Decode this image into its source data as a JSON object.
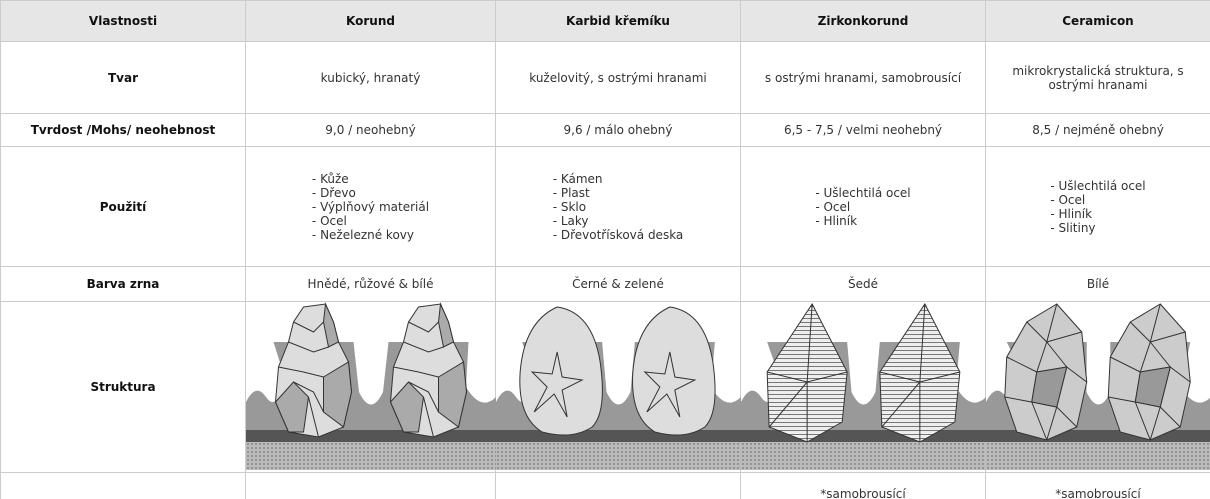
{
  "table": {
    "header": [
      "Vlastnosti",
      "Korund",
      "Karbid křemíku",
      "Zirkonkorund",
      "Ceramicon"
    ],
    "rows": [
      {
        "label": "Tvar",
        "cells": [
          "kubický, hranatý",
          "kuželovitý, s ostrými hranami",
          "s ostrými hranami, samobrousící",
          "mikrokrystalická struktura, s ostrými hranami"
        ]
      },
      {
        "label": "Tvrdost /Mohs/ neohebnost",
        "cells": [
          "9,0 / neohebný",
          "9,6 / málo ohebný",
          "6,5 - 7,5 / velmi neohebný",
          "8,5 / nejméně ohebný"
        ]
      },
      {
        "label": "Použití",
        "cells": [
          [
            "- Kůže",
            "- Dřevo",
            "- Výplňový materiál",
            "- Ocel",
            "- Neželezné kovy"
          ],
          [
            "- Kámen",
            "- Plast",
            "- Sklo",
            "- Laky",
            "- Dřevotřísková deska"
          ],
          [
            "- Ušlechtilá ocel",
            "- Ocel",
            "- Hliník"
          ],
          [
            "- Ušlechtilá ocel",
            "- Ocel",
            "- Hliník",
            "- Slitiny"
          ]
        ]
      },
      {
        "label": "Barva zrna",
        "cells": [
          "Hnědé, růžové & bílé",
          "Černé & zelené",
          "Šedé",
          "Bílé"
        ]
      },
      {
        "label": "Struktura"
      }
    ],
    "footnotes": [
      null,
      null,
      null,
      "*samobrousící",
      "*samobrousící"
    ]
  }
}
